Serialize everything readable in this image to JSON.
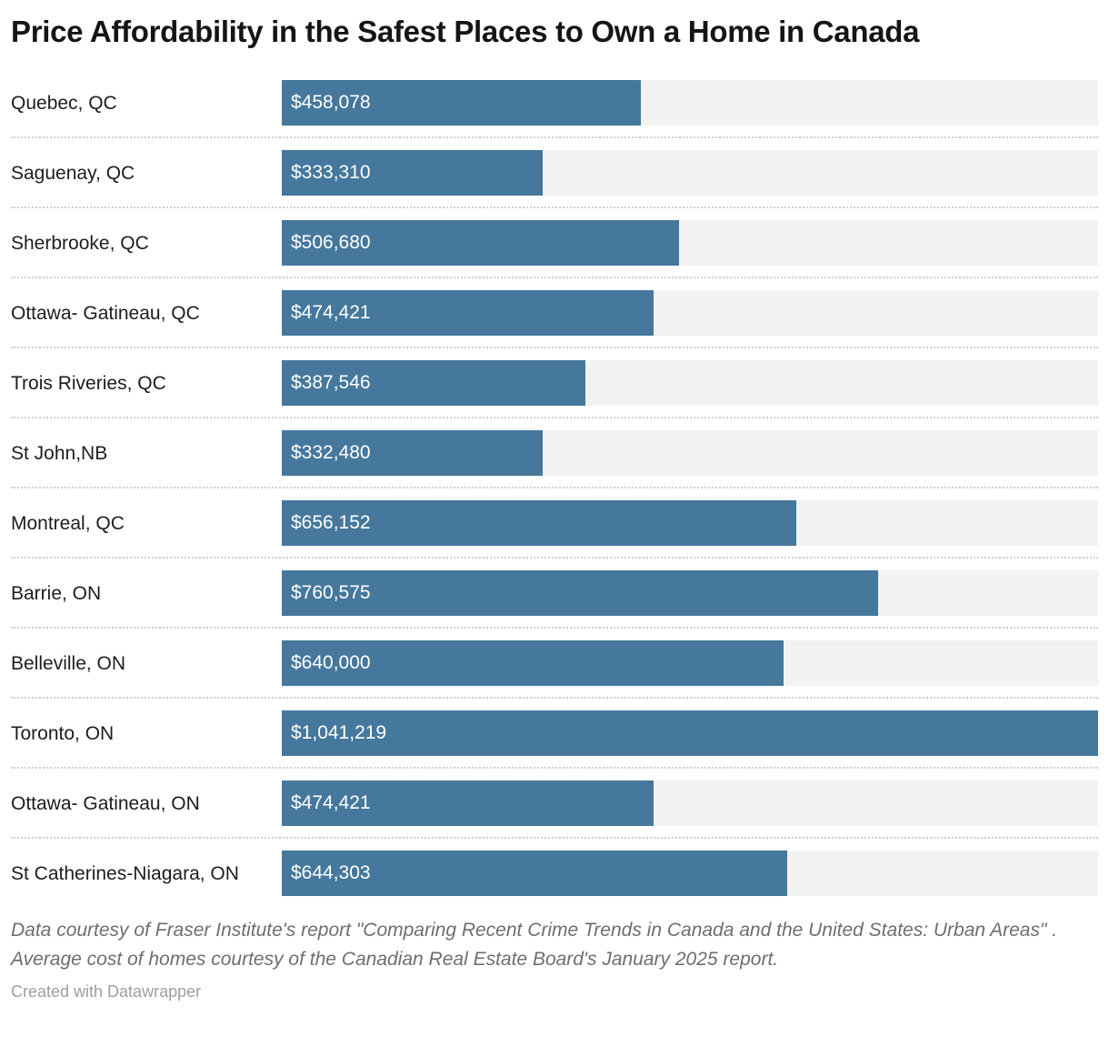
{
  "header": {
    "title": "Price Affordability in the Safest Places to Own a Home in Canada"
  },
  "chart_data": {
    "type": "bar",
    "orientation": "horizontal",
    "title": "Price Affordability in the Safest Places to Own a Home in Canada",
    "categories": [
      "Quebec, QC",
      "Saguenay, QC",
      "Sherbrooke, QC",
      "Ottawa- Gatineau, QC",
      "Trois Riveries, QC",
      "St John,NB",
      "Montreal, QC",
      "Barrie, ON",
      "Belleville, ON",
      "Toronto, ON",
      "Ottawa- Gatineau, ON",
      "St Catherines-Niagara, ON"
    ],
    "values": [
      458078,
      333310,
      506680,
      474421,
      387546,
      332480,
      656152,
      760575,
      640000,
      1041219,
      474421,
      644303
    ],
    "value_labels": [
      "$458,078",
      "$333,310",
      "$506,680",
      "$474,421",
      "$387,546",
      "$332,480",
      "$656,152",
      "$760,575",
      "$640,000",
      "$1,041,219",
      "$474,421",
      "$644,303"
    ],
    "xlabel": "",
    "ylabel": "",
    "xlim": [
      0,
      1041219
    ],
    "grid": false,
    "legend": false,
    "value_labels_inside_bars": true,
    "bar_color": "#45789C",
    "track_color": "#f2f2f2",
    "divider_color": "#cfcfcf"
  },
  "footer": {
    "notes": "Data courtesy of Fraser Institute's report \"Comparing Recent Crime Trends in Canada and the United States: Urban Areas\" . Average cost of homes courtesy of the Canadian Real Estate Board's January 2025 report.",
    "attribution": "Created with Datawrapper"
  }
}
